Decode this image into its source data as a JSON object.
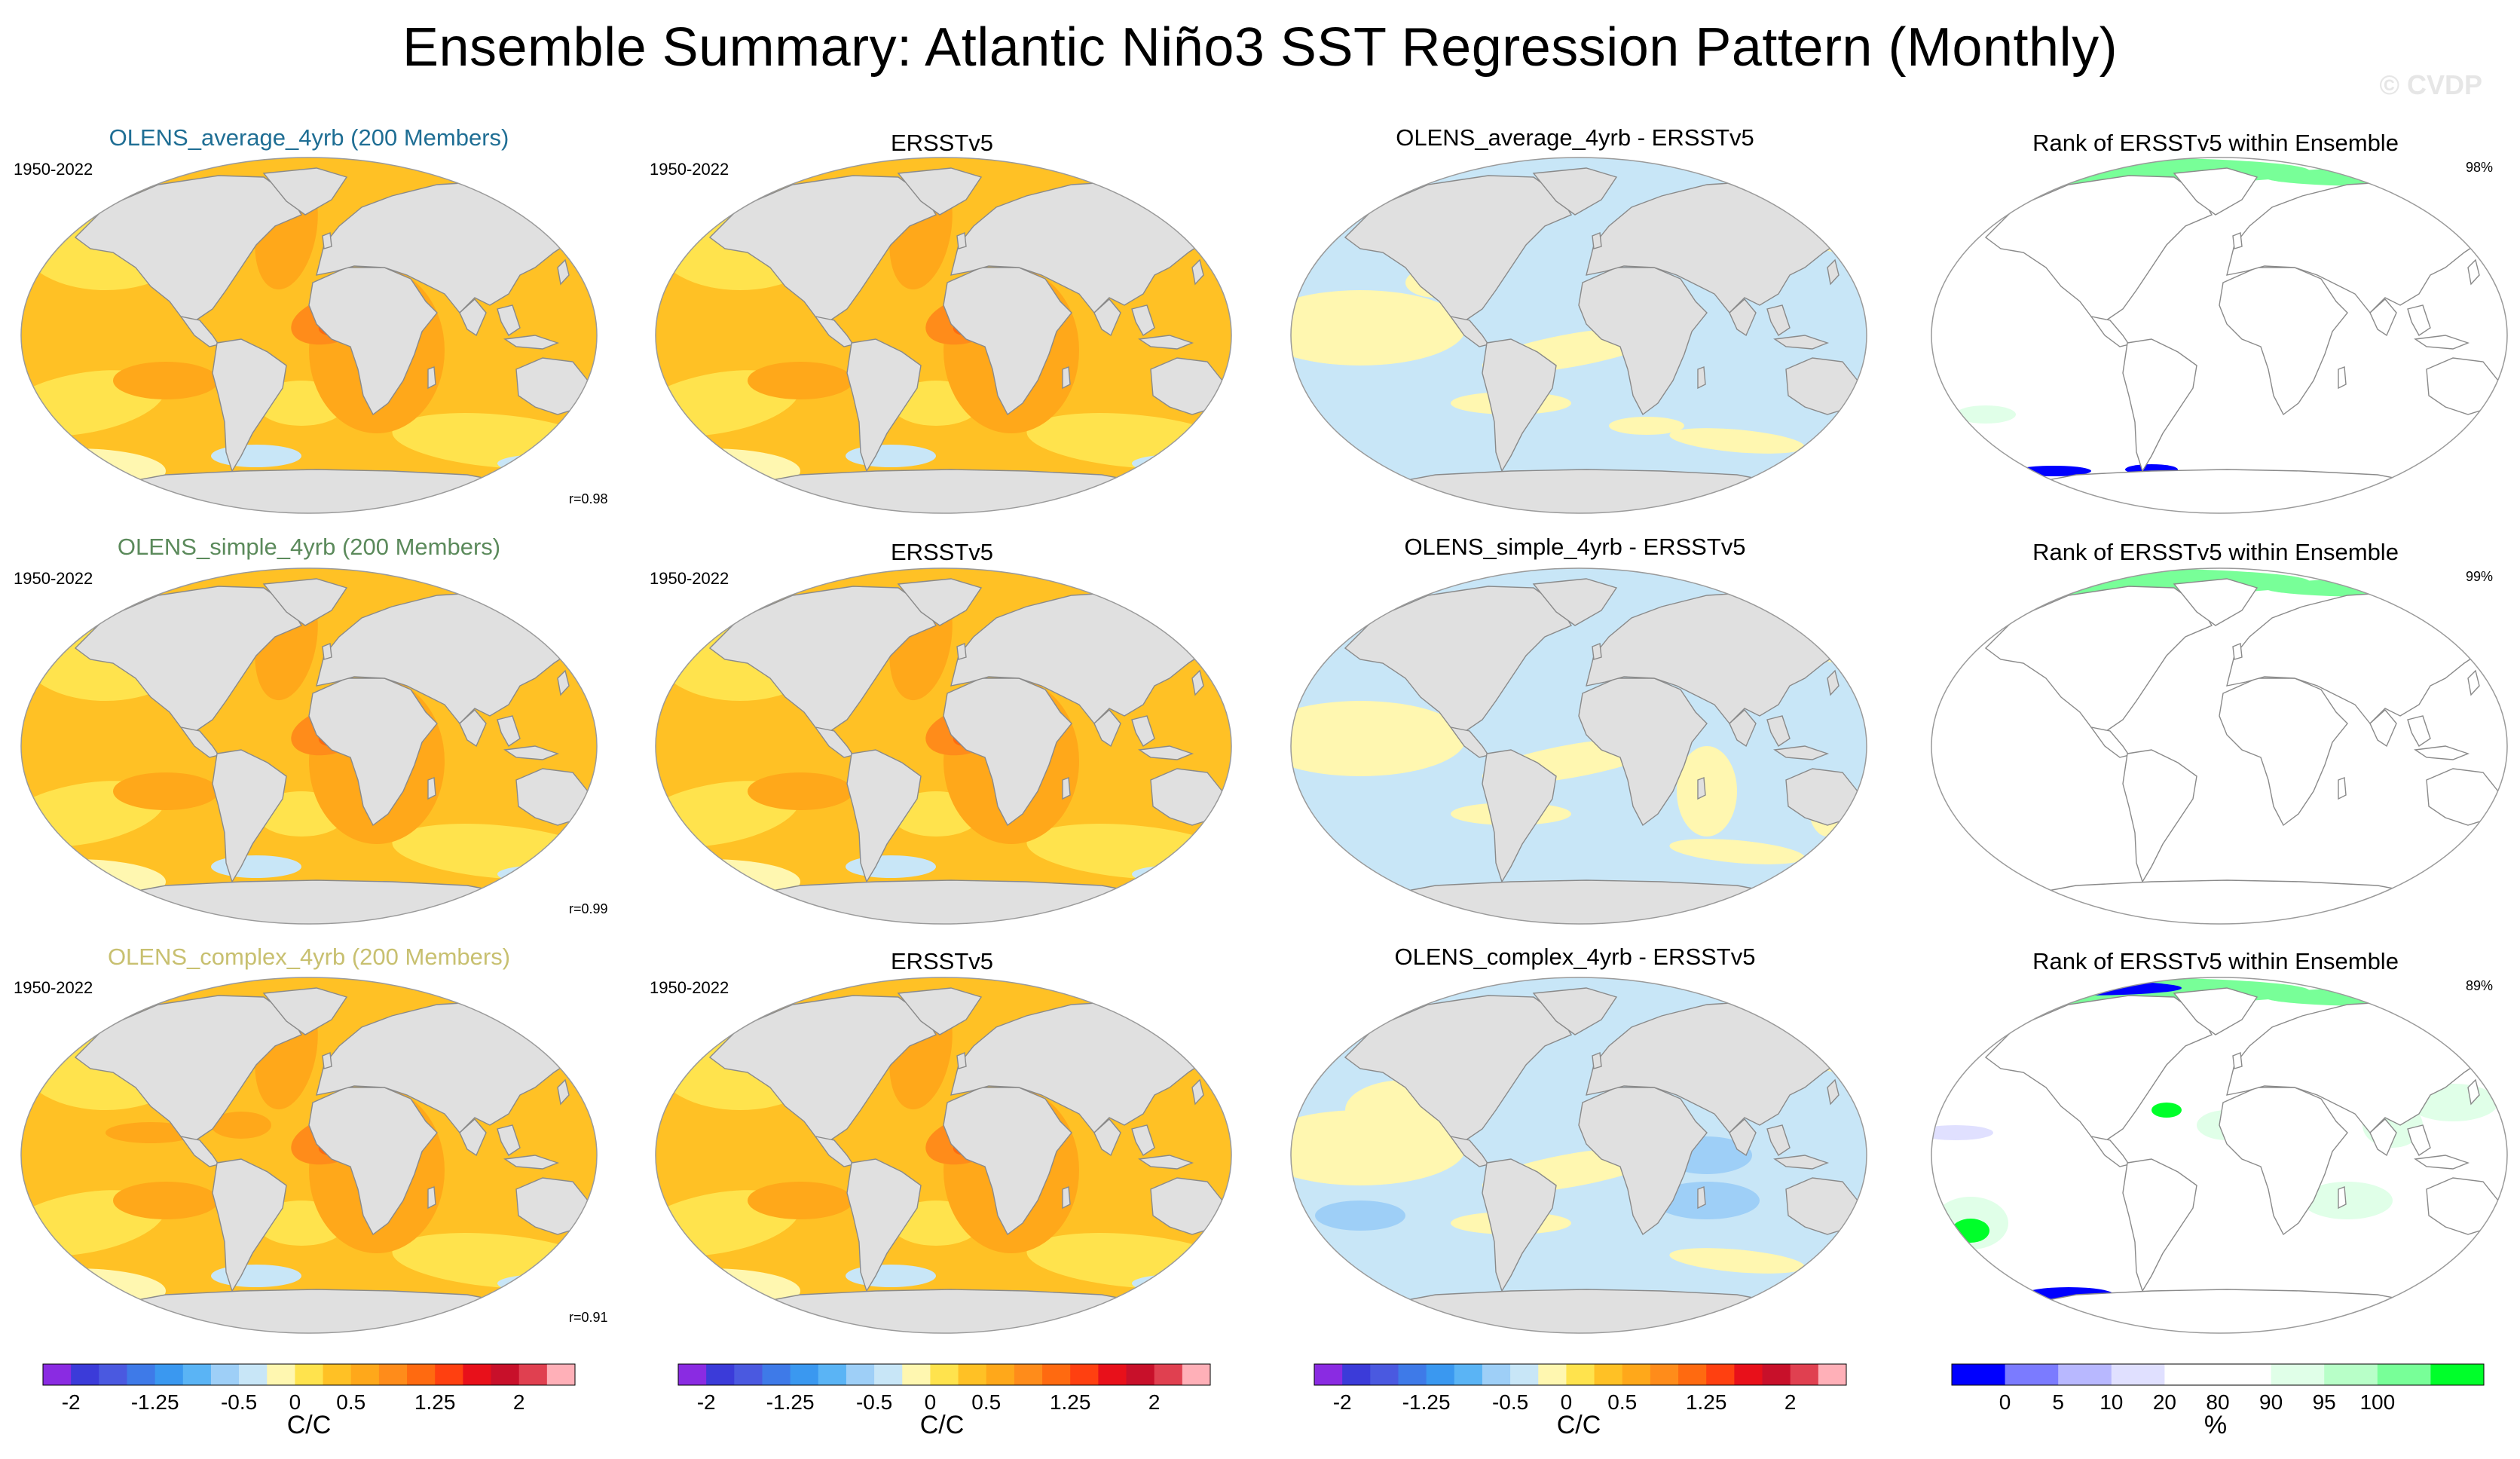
{
  "title": "Ensemble Summary: Atlantic Niño3 SST Regression Pattern (Monthly)",
  "watermark": "© CVDP",
  "colors": {
    "land": "#e0e0e0",
    "coast": "#8a8a8a",
    "sst_scale": [
      "#8a2be2",
      "#3b3bd9",
      "#4a59e0",
      "#3e7ae8",
      "#3a98f0",
      "#5ab4f5",
      "#9ecff7",
      "#c8e6f7",
      "#fff7b0",
      "#ffe34d",
      "#ffc125",
      "#ffa81a",
      "#ff8c1a",
      "#ff6a10",
      "#ff4010",
      "#e8101a",
      "#c8102a",
      "#e04050",
      "#ffb0b8"
    ],
    "rank_scale": [
      "#0000ff",
      "#7b7bff",
      "#b8b8ff",
      "#e0e0ff",
      "#ffffff",
      "#ffffff",
      "#e0ffe8",
      "#b8ffc8",
      "#78ff98",
      "#00ff2a"
    ]
  },
  "rows": [
    {
      "model_title": "OLENS_average_4yrb (200 Members)",
      "model_title_color": "#1f6e94",
      "years": "1950-2022",
      "pattern_corr": "r=0.98",
      "obs_title": "ERSSTv5",
      "obs_years": "1950-2022",
      "diff_title": "OLENS_average_4yrb - ERSSTv5",
      "rank_title": "Rank of ERSSTv5 within Ensemble",
      "rank_pct": "98%"
    },
    {
      "model_title": "OLENS_simple_4yrb (200 Members)",
      "model_title_color": "#5b8a5b",
      "years": "1950-2022",
      "pattern_corr": "r=0.99",
      "obs_title": "ERSSTv5",
      "obs_years": "1950-2022",
      "diff_title": "OLENS_simple_4yrb - ERSSTv5",
      "rank_title": "Rank of ERSSTv5 within Ensemble",
      "rank_pct": "99%"
    },
    {
      "model_title": "OLENS_complex_4yrb (200 Members)",
      "model_title_color": "#c8c070",
      "years": "1950-2022",
      "pattern_corr": "r=0.91",
      "obs_title": "ERSSTv5",
      "obs_years": "1950-2022",
      "diff_title": "OLENS_complex_4yrb - ERSSTv5",
      "rank_title": "Rank of ERSSTv5 within Ensemble",
      "rank_pct": "89%"
    }
  ],
  "colorbars": [
    {
      "unit": "C/C",
      "labels": [
        "-2",
        "-1.25",
        "-0.5",
        "0",
        "0.5",
        "1.25",
        "2"
      ]
    },
    {
      "unit": "C/C",
      "labels": [
        "-2",
        "-1.25",
        "-0.5",
        "0",
        "0.5",
        "1.25",
        "2"
      ]
    },
    {
      "unit": "C/C",
      "labels": [
        "-2",
        "-1.25",
        "-0.5",
        "0",
        "0.5",
        "1.25",
        "2"
      ]
    },
    {
      "unit": "%",
      "labels": [
        "0",
        "5",
        "10",
        "20",
        "80",
        "90",
        "95",
        "100"
      ]
    }
  ],
  "chart_data": {
    "type": "heatmap",
    "title": "Ensemble Summary: Atlantic Niño3 SST Regression Pattern (Monthly)",
    "projection": "Robinson (global)",
    "panels_per_row": [
      "ensemble mean",
      "observations",
      "difference",
      "rank"
    ],
    "sst_levels": [
      -2,
      -1.75,
      -1.5,
      -1.25,
      -1,
      -0.75,
      -0.5,
      -0.25,
      0,
      0.25,
      0.5,
      0.75,
      1,
      1.25,
      1.5,
      1.75,
      2
    ],
    "rank_levels": [
      0,
      5,
      10,
      20,
      80,
      90,
      95,
      100
    ],
    "units": [
      "C/C",
      "%"
    ]
  }
}
